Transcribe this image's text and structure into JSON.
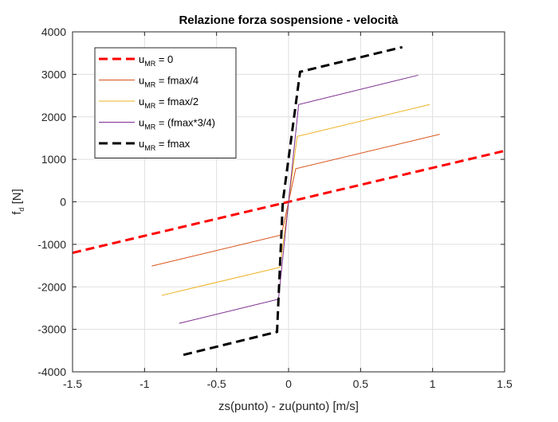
{
  "chart_data": {
    "type": "line",
    "title": "Relazione forza sospensione - velocità",
    "xlabel": "zs(punto) - zu(punto) [m/s]",
    "ylabel": {
      "main": "f",
      "sub": "d",
      "rest": " [N]"
    },
    "xlim": [
      -1.5,
      1.5
    ],
    "ylim": [
      -4000,
      4000
    ],
    "x_ticks": [
      -1.5,
      -1,
      -0.5,
      0,
      0.5,
      1,
      1.5
    ],
    "x_tick_labels": [
      "-1.5",
      "-1",
      "-0.5",
      "0",
      "0.5",
      "1",
      "1.5"
    ],
    "y_ticks": [
      -4000,
      -3000,
      -2000,
      -1000,
      0,
      1000,
      2000,
      3000,
      4000
    ],
    "y_tick_labels": [
      "-4000",
      "-3000",
      "-2000",
      "-1000",
      "0",
      "1000",
      "2000",
      "3000",
      "4000"
    ],
    "grid": true,
    "legend_position": "top-left",
    "series": [
      {
        "legend_main": "u",
        "legend_sub": "MR",
        "legend_rest": " = 0",
        "color": "#ff0000",
        "style": "dashed",
        "width": "thick",
        "x": [
          -1.5,
          1.5
        ],
        "y": [
          -1200,
          1200
        ]
      },
      {
        "legend_main": "u",
        "legend_sub": "MR",
        "legend_rest": " = fmax/4",
        "color": "#d95319",
        "style": "solid",
        "width": "thin",
        "x": [
          -0.95,
          -0.05,
          0.05,
          1.05
        ],
        "y": [
          -1510,
          -780,
          780,
          1590
        ]
      },
      {
        "legend_main": "u",
        "legend_sub": "MR",
        "legend_rest": " = fmax/2",
        "color": "#edb120",
        "style": "solid",
        "width": "thin",
        "x": [
          -0.88,
          -0.06,
          0.06,
          0.98
        ],
        "y": [
          -2200,
          -1540,
          1540,
          2290
        ]
      },
      {
        "legend_main": "u",
        "legend_sub": "MR",
        "legend_rest": " = (fmax*3/4)",
        "color": "#7e2f8e",
        "style": "solid",
        "width": "thin",
        "x": [
          -0.76,
          -0.07,
          0.07,
          0.9
        ],
        "y": [
          -2860,
          -2290,
          2290,
          2980
        ]
      },
      {
        "legend_main": "u",
        "legend_sub": "MR",
        "legend_rest": " = fmax",
        "color": "#000000",
        "style": "dashed",
        "width": "thick",
        "x": [
          -0.73,
          -0.08,
          -0.04,
          0.08,
          0.79
        ],
        "y": [
          -3600,
          -3060,
          0,
          3060,
          3640
        ]
      }
    ]
  }
}
